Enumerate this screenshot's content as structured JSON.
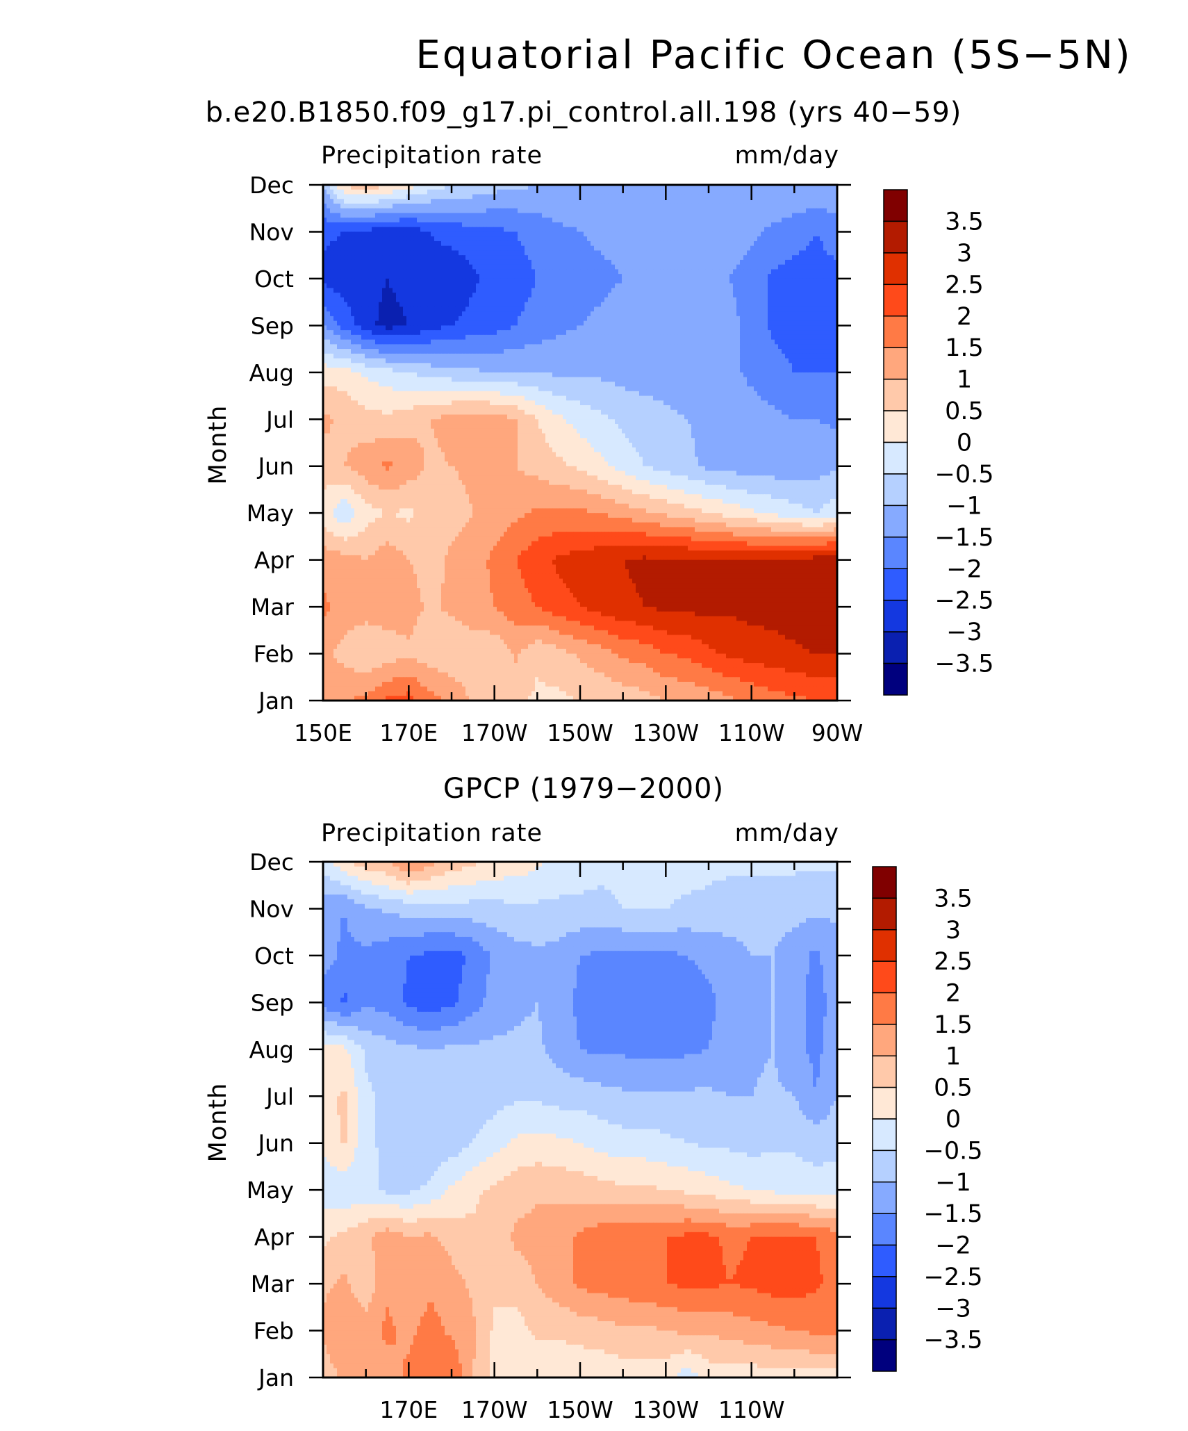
{
  "figure": {
    "title": "Equatorial Pacific Ocean (5S−5N)"
  },
  "colorbar": {
    "levels": [
      "3.5",
      "3",
      "2.5",
      "2",
      "1.5",
      "1",
      "0.5",
      "0",
      "−0.5",
      "−1",
      "−1.5",
      "−2",
      "−2.5",
      "−3",
      "−3.5"
    ],
    "colors": [
      "#800000",
      "#b31b00",
      "#e03000",
      "#ff4a1a",
      "#ff7a45",
      "#ffa77d",
      "#ffc9aa",
      "#ffe8d6",
      "#d7e9ff",
      "#b5d0ff",
      "#86aaff",
      "#5a86ff",
      "#2f5cff",
      "#1438e0",
      "#0a20b0",
      "#00007e"
    ]
  },
  "chart_data": [
    {
      "type": "heatmap",
      "title": "b.e20.B1850.f09_g17.pi_control.all.198 (yrs 40−59)",
      "left_label": "Precipitation rate",
      "right_label": "mm/day",
      "ylabel": "Month",
      "x_ticks": [
        "150E",
        "170E",
        "170W",
        "150W",
        "130W",
        "110W",
        "90W"
      ],
      "y_ticks": [
        "Jan",
        "Feb",
        "Mar",
        "Apr",
        "May",
        "Jun",
        "Jul",
        "Aug",
        "Sep",
        "Oct",
        "Nov",
        "Dec"
      ],
      "x_range": [
        150,
        270
      ],
      "x": [
        150,
        155,
        160,
        165,
        170,
        175,
        180,
        185,
        190,
        195,
        200,
        205,
        210,
        215,
        220,
        225,
        230,
        235,
        240,
        245,
        250,
        255,
        260,
        265,
        270
      ],
      "y": [
        "Jan",
        "Feb",
        "Mar",
        "Apr",
        "May",
        "Jun",
        "Jul",
        "Aug",
        "Sep",
        "Oct",
        "Nov",
        "Dec"
      ],
      "z": [
        [
          1.3,
          1.5,
          1.6,
          2.1,
          2.2,
          1.7,
          1.4,
          0.9,
          0.6,
          0.6,
          0.4,
          0.4,
          0.5,
          0.6,
          0.7,
          0.8,
          1.0,
          1.1,
          1.2,
          1.4,
          1.6,
          1.8,
          1.9,
          2.0,
          2.0
        ],
        [
          1.2,
          0.8,
          0.6,
          0.7,
          0.9,
          0.7,
          0.6,
          0.7,
          0.6,
          1.1,
          0.6,
          0.8,
          1.1,
          1.3,
          1.6,
          1.7,
          2.0,
          2.1,
          2.4,
          2.6,
          2.7,
          2.8,
          2.9,
          3.0,
          3.0
        ],
        [
          1.6,
          1.3,
          1.2,
          1.3,
          1.2,
          0.9,
          1.1,
          1.3,
          1.5,
          1.8,
          2.0,
          2.3,
          2.5,
          2.7,
          2.9,
          3.0,
          3.1,
          3.1,
          3.2,
          3.1,
          3.2,
          3.2,
          3.3,
          3.5,
          3.4
        ],
        [
          1.3,
          1.2,
          1.0,
          1.3,
          1.0,
          0.8,
          1.1,
          1.3,
          1.6,
          2.0,
          2.3,
          2.6,
          2.7,
          2.9,
          3.0,
          3.1,
          3.1,
          3.1,
          3.1,
          3.0,
          3.0,
          3.0,
          3.1,
          3.2,
          3.3
        ],
        [
          0.2,
          -0.4,
          0.3,
          0.5,
          0.4,
          0.7,
          0.8,
          1.0,
          1.2,
          1.4,
          1.6,
          1.6,
          1.6,
          1.5,
          1.3,
          1.1,
          0.9,
          0.7,
          0.5,
          0.3,
          0.1,
          -0.1,
          -0.3,
          -0.5,
          -0.2
        ],
        [
          0.8,
          1.0,
          1.3,
          1.6,
          1.3,
          0.9,
          1.0,
          1.1,
          1.0,
          1.0,
          0.8,
          0.6,
          0.4,
          0.1,
          -0.2,
          -0.5,
          -0.7,
          -0.9,
          -1.1,
          -1.2,
          -1.3,
          -1.3,
          -1.3,
          -1.2,
          -1.1
        ],
        [
          1.1,
          0.9,
          0.7,
          0.6,
          0.8,
          1.0,
          1.2,
          1.3,
          1.3,
          1.0,
          0.5,
          0.1,
          -0.2,
          -0.4,
          -0.6,
          -0.8,
          -0.9,
          -1.0,
          -1.1,
          -1.2,
          -1.3,
          -1.4,
          -1.5,
          -1.5,
          -1.6
        ],
        [
          0.3,
          0.2,
          -0.1,
          -0.3,
          -0.5,
          -0.7,
          -0.8,
          -0.9,
          -1.0,
          -1.0,
          -1.0,
          -1.1,
          -1.1,
          -1.1,
          -1.2,
          -1.2,
          -1.2,
          -1.3,
          -1.3,
          -1.4,
          -1.6,
          -1.8,
          -2.0,
          -2.0,
          -2.0
        ],
        [
          -1.5,
          -2.2,
          -2.8,
          -3.2,
          -3.0,
          -2.7,
          -2.5,
          -2.3,
          -2.2,
          -2.0,
          -1.8,
          -1.6,
          -1.5,
          -1.4,
          -1.3,
          -1.3,
          -1.3,
          -1.3,
          -1.4,
          -1.4,
          -1.6,
          -2.1,
          -2.2,
          -2.2,
          -2.1
        ],
        [
          -2.6,
          -2.8,
          -2.8,
          -3.0,
          -2.8,
          -2.7,
          -2.9,
          -2.6,
          -2.3,
          -2.2,
          -2.0,
          -1.8,
          -1.7,
          -1.6,
          -1.5,
          -1.4,
          -1.4,
          -1.4,
          -1.4,
          -1.5,
          -1.7,
          -2.1,
          -2.2,
          -2.2,
          -2.1
        ],
        [
          -2.4,
          -2.5,
          -2.6,
          -2.8,
          -2.8,
          -2.5,
          -2.3,
          -2.2,
          -2.1,
          -2.0,
          -1.8,
          -1.6,
          -1.5,
          -1.4,
          -1.4,
          -1.3,
          -1.3,
          -1.3,
          -1.3,
          -1.3,
          -1.4,
          -1.6,
          -1.8,
          -2.0,
          -1.8
        ],
        [
          -0.9,
          0.6,
          0.8,
          0.6,
          0.2,
          -0.2,
          -0.5,
          -0.6,
          -0.8,
          -0.9,
          -1.0,
          -1.0,
          -1.1,
          -1.1,
          -1.1,
          -1.1,
          -1.0,
          -1.0,
          -1.0,
          -1.0,
          -1.0,
          -1.0,
          -1.0,
          -1.0,
          -1.0
        ]
      ]
    },
    {
      "type": "heatmap",
      "title": "GPCP (1979−2000)",
      "left_label": "Precipitation rate",
      "right_label": "mm/day",
      "ylabel": "Month",
      "x_ticks": [
        "170E",
        "170W",
        "150W",
        "130W",
        "110W"
      ],
      "y_ticks": [
        "Jan",
        "Feb",
        "Mar",
        "Apr",
        "May",
        "Jun",
        "Jul",
        "Aug",
        "Sep",
        "Oct",
        "Nov",
        "Dec"
      ],
      "x_range": [
        150,
        270
      ],
      "x": [
        150,
        155,
        160,
        165,
        170,
        175,
        180,
        185,
        190,
        195,
        200,
        205,
        210,
        215,
        220,
        225,
        230,
        235,
        240,
        245,
        250,
        255,
        260,
        265,
        270
      ],
      "y": [
        "Jan",
        "Feb",
        "Mar",
        "Apr",
        "May",
        "Jun",
        "Jul",
        "Aug",
        "Sep",
        "Oct",
        "Nov",
        "Dec"
      ],
      "z": [
        [
          0.7,
          1.1,
          1.2,
          1.3,
          1.6,
          1.7,
          2.0,
          1.0,
          0.3,
          0.2,
          0.1,
          0.1,
          0.1,
          0.1,
          0.2,
          0.2,
          0.2,
          -0.3,
          0.2,
          0.2,
          0.2,
          0.3,
          0.3,
          0.3,
          0.3
        ],
        [
          1.1,
          1.5,
          1.3,
          1.6,
          1.4,
          1.7,
          1.4,
          1.1,
          0.4,
          0.3,
          0.6,
          0.6,
          0.7,
          0.8,
          0.9,
          0.9,
          1.0,
          1.1,
          1.1,
          1.2,
          1.3,
          1.4,
          1.5,
          1.6,
          1.6
        ],
        [
          0.9,
          1.1,
          0.6,
          1.4,
          1.0,
          1.4,
          1.2,
          0.9,
          0.6,
          0.7,
          1.0,
          1.3,
          1.6,
          1.7,
          1.8,
          1.9,
          2.0,
          2.1,
          2.1,
          2.0,
          2.1,
          2.2,
          2.2,
          2.1,
          1.8
        ],
        [
          0.4,
          0.6,
          0.9,
          1.3,
          1.0,
          1.1,
          0.8,
          0.6,
          0.7,
          1.1,
          1.2,
          1.2,
          1.6,
          1.8,
          1.9,
          1.9,
          2.0,
          2.1,
          2.1,
          1.9,
          2.0,
          2.1,
          2.1,
          2.0,
          1.7
        ],
        [
          -0.3,
          -0.4,
          -0.3,
          -0.6,
          -0.6,
          -0.4,
          0.1,
          0.4,
          0.6,
          0.8,
          0.9,
          0.9,
          0.8,
          0.7,
          0.6,
          0.6,
          0.5,
          0.4,
          0.3,
          0.1,
          0.0,
          -0.1,
          -0.2,
          -0.3,
          -0.3
        ],
        [
          0.1,
          0.6,
          -0.4,
          -0.6,
          -0.9,
          -0.8,
          -0.8,
          -0.5,
          -0.2,
          0.1,
          0.2,
          0.1,
          0.0,
          -0.2,
          -0.3,
          -0.3,
          -0.4,
          -0.5,
          -0.6,
          -0.6,
          -0.7,
          -0.6,
          -0.6,
          -0.7,
          -0.6
        ],
        [
          0.3,
          0.6,
          -0.4,
          -0.6,
          -0.8,
          -0.9,
          -0.9,
          -0.8,
          -0.7,
          -0.6,
          -0.6,
          -0.7,
          -0.7,
          -0.8,
          -0.9,
          -0.9,
          -0.9,
          -0.9,
          -0.9,
          -1.0,
          -1.0,
          -0.9,
          -1.0,
          -1.5,
          -1.0
        ],
        [
          0.2,
          0.1,
          -0.6,
          -0.8,
          -0.9,
          -1.0,
          -0.9,
          -0.9,
          -0.9,
          -0.9,
          -0.9,
          -1.2,
          -1.5,
          -1.6,
          -1.6,
          -1.7,
          -1.7,
          -1.6,
          -1.5,
          -1.3,
          -1.1,
          -1.0,
          -1.4,
          -1.6,
          -1.3
        ],
        [
          -1.7,
          -2.1,
          -1.6,
          -1.7,
          -2.1,
          -2.3,
          -2.1,
          -1.7,
          -1.3,
          -1.1,
          -1.0,
          -1.3,
          -1.6,
          -1.7,
          -1.8,
          -1.8,
          -1.8,
          -1.7,
          -1.6,
          -1.3,
          -1.1,
          -1.0,
          -1.4,
          -1.6,
          -1.4
        ],
        [
          -1.3,
          -1.6,
          -1.6,
          -1.8,
          -2.0,
          -2.1,
          -2.2,
          -1.9,
          -1.4,
          -1.2,
          -1.1,
          -1.2,
          -1.5,
          -1.6,
          -1.6,
          -1.6,
          -1.6,
          -1.5,
          -1.4,
          -1.2,
          -1.0,
          -1.0,
          -1.3,
          -1.6,
          -1.2
        ],
        [
          -1.3,
          -1.5,
          -1.1,
          -0.9,
          -0.8,
          -0.8,
          -0.7,
          -0.7,
          -0.7,
          -0.6,
          -0.6,
          -0.6,
          -0.6,
          -0.6,
          -0.5,
          -0.5,
          -0.5,
          -0.6,
          -0.6,
          -0.7,
          -0.8,
          -0.8,
          -0.8,
          -0.9,
          -0.9
        ],
        [
          -0.2,
          0.4,
          0.8,
          1.0,
          1.6,
          1.2,
          0.8,
          0.6,
          0.4,
          0.3,
          0.1,
          -0.2,
          -0.3,
          -0.4,
          -0.4,
          -0.3,
          -0.2,
          -0.3,
          -0.4,
          -0.4,
          -0.4,
          -0.4,
          -0.4,
          -0.4,
          -0.4
        ]
      ]
    }
  ]
}
